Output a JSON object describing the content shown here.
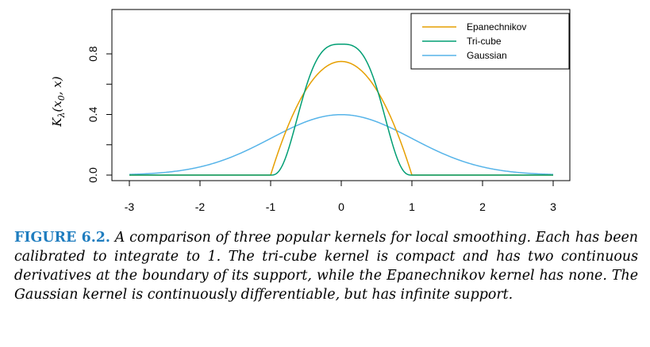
{
  "chart_data": {
    "type": "line",
    "xlim": [
      -3,
      3
    ],
    "ylim": [
      0,
      0.9
    ],
    "x_ticks": [
      "-3",
      "-2",
      "-1",
      "0",
      "1",
      "2",
      "3"
    ],
    "y_ticks": [
      "0.0",
      "0.4",
      "0.8"
    ],
    "ylabel": "K_λ(x_0, x)",
    "legend_position": "top-right",
    "series": [
      {
        "name": "Epanechnikov",
        "color": "#E69F00",
        "formula": "0.75*(1-x^2) for |x|<=1, else 0"
      },
      {
        "name": "Tri-cube",
        "color": "#009E73",
        "formula": "(70/81)*(1-|x|^3)^3 for |x|<=1, else 0"
      },
      {
        "name": "Gaussian",
        "color": "#56B4E9",
        "formula": "exp(-x^2/2)/sqrt(2*pi)"
      }
    ]
  },
  "caption": {
    "label": "FIGURE 6.2.",
    "text": "A comparison of three popular kernels for local smoothing. Each has been calibrated to integrate to 1. The tri-cube kernel is compact and has two continuous derivatives at the boundary of its support, while the Epanechnikov kernel has none. The Gaussian kernel is continuously differentiable, but has infinite support."
  }
}
